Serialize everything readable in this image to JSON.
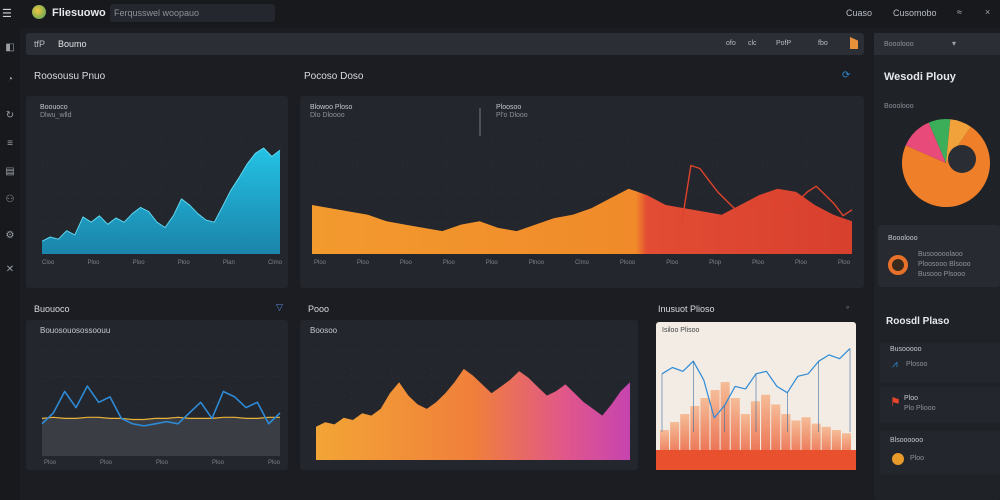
{
  "app": {
    "title": "Fliesuowo",
    "search_text": "Ferqusswel woopauo",
    "top_right": [
      "Cuaso",
      "Cusomobo",
      "≈"
    ]
  },
  "colors": {
    "background": "#1b1d22",
    "panel": "#23262c",
    "cyan": "#21b7d8",
    "orange": "#f08a2a",
    "red": "#e2452f",
    "magenta": "#d24aa8"
  },
  "toolbar": {
    "label": "Boumo",
    "prefix": "tfP",
    "controls": [
      "ofo",
      "clc",
      "PofP",
      "fbo"
    ]
  },
  "sections": {
    "left_top_title": "Roosousu Pnuo",
    "mid_top_title": "Pocoso Doso",
    "left_bottom_title": "Buouoco",
    "mid_bottom_title": "Pooo",
    "right_bottom_title": "Inusuot Plioso",
    "right_panel_title": "Wesodi Plouy"
  },
  "chart1": {
    "label": "Boouoco",
    "sublabel": "Dlwu_wlld",
    "ticks": [
      "Cloo",
      "Ploo",
      "Ploo",
      "Ploo",
      "Plan",
      "Clmo"
    ]
  },
  "chart2": {
    "label_a": "Blowoo Ploso",
    "sub_a": "Dlo Dloooo",
    "label_b": "Ploosoo",
    "sub_b": "Pl'o Dlooo",
    "ticks": [
      "Ploo",
      "Ploo",
      "Ploo",
      "Ploo",
      "Ploo",
      "Plnoo",
      "Clmo",
      "Plooo",
      "Ploo",
      "Plop",
      "Ploo",
      "Ploo",
      "Ploo"
    ]
  },
  "chart3": {
    "label": "Bouosouosossoouu",
    "ticks": [
      "Ploo",
      "Ploo",
      "Ploo",
      "Ploo",
      "Ploo"
    ]
  },
  "chart4": {
    "label": "Boosoo"
  },
  "chart5": {
    "label": "Isiloo Plisoo"
  },
  "right_panel": {
    "pie_label": "Booolooo",
    "gauge_label": "Booolooo",
    "gauge_lines": [
      "Busooooolaoo",
      "Ploosooo Blsooo",
      "Busooo Plsooo"
    ],
    "section_title": "Roosdl Plaso",
    "items": [
      {
        "label": "Busooooo",
        "value": "Plosoo"
      },
      {
        "label": "Ploo",
        "value": "Plo Pliooo"
      },
      {
        "label": "Blsoooooo",
        "value": "Ploo"
      }
    ]
  },
  "chart_data": [
    {
      "type": "area",
      "title": "",
      "series": [
        {
          "values": [
            12,
            16,
            14,
            22,
            18,
            35,
            30,
            36,
            28,
            34,
            30,
            38,
            44,
            40,
            30,
            25,
            36,
            52,
            46,
            38,
            32,
            30,
            45,
            60,
            72,
            85,
            95,
            100,
            92,
            98
          ]
        }
      ]
    },
    {
      "type": "area",
      "title": "",
      "series": [
        {
          "values": [
            30,
            28,
            26,
            24,
            20,
            18,
            16,
            14,
            18,
            20,
            16,
            14,
            18,
            22,
            24,
            28,
            34,
            40,
            36,
            30,
            28,
            26,
            24,
            30,
            36,
            40,
            38,
            30,
            24,
            20
          ]
        },
        {
          "values": [
            22,
            60,
            58,
            50,
            42,
            36,
            30,
            28,
            34,
            40,
            38,
            32,
            30,
            36,
            42,
            46,
            40,
            34,
            26,
            30
          ]
        }
      ]
    },
    {
      "type": "line",
      "title": "",
      "series": [
        {
          "values": [
            30,
            40,
            60,
            45,
            65,
            50,
            55,
            35,
            30,
            28,
            30,
            32,
            30,
            40,
            50,
            35,
            60,
            55,
            45,
            50,
            30,
            40
          ]
        },
        {
          "values": [
            35,
            36,
            35,
            35,
            36,
            36,
            35,
            35,
            34,
            34,
            35,
            35,
            36,
            35,
            35,
            35,
            36,
            36,
            35,
            35,
            36,
            36
          ]
        }
      ]
    },
    {
      "type": "area",
      "title": "",
      "series": [
        {
          "values": [
            30,
            34,
            32,
            38,
            36,
            42,
            40,
            46,
            60,
            70,
            58,
            50,
            46,
            52,
            60,
            70,
            82,
            76,
            68,
            60,
            66,
            72,
            80,
            74,
            66,
            58,
            62,
            68,
            60,
            52,
            46,
            40,
            50,
            62,
            70
          ]
        }
      ]
    },
    {
      "type": "line",
      "title": "",
      "series": [
        {
          "values": [
            70,
            75,
            72,
            80,
            65,
            35,
            45,
            60,
            58,
            70,
            72,
            60,
            55,
            68,
            70,
            80,
            85,
            82,
            90
          ]
        },
        {
          "values": [
            20,
            25,
            30,
            35,
            40,
            45,
            50,
            40,
            30,
            38,
            42,
            36,
            30,
            26,
            28,
            24,
            22,
            20,
            18
          ]
        }
      ]
    },
    {
      "type": "pie",
      "title": "",
      "series": [
        {
          "values": [
            72,
            12,
            8,
            8
          ]
        }
      ]
    }
  ]
}
